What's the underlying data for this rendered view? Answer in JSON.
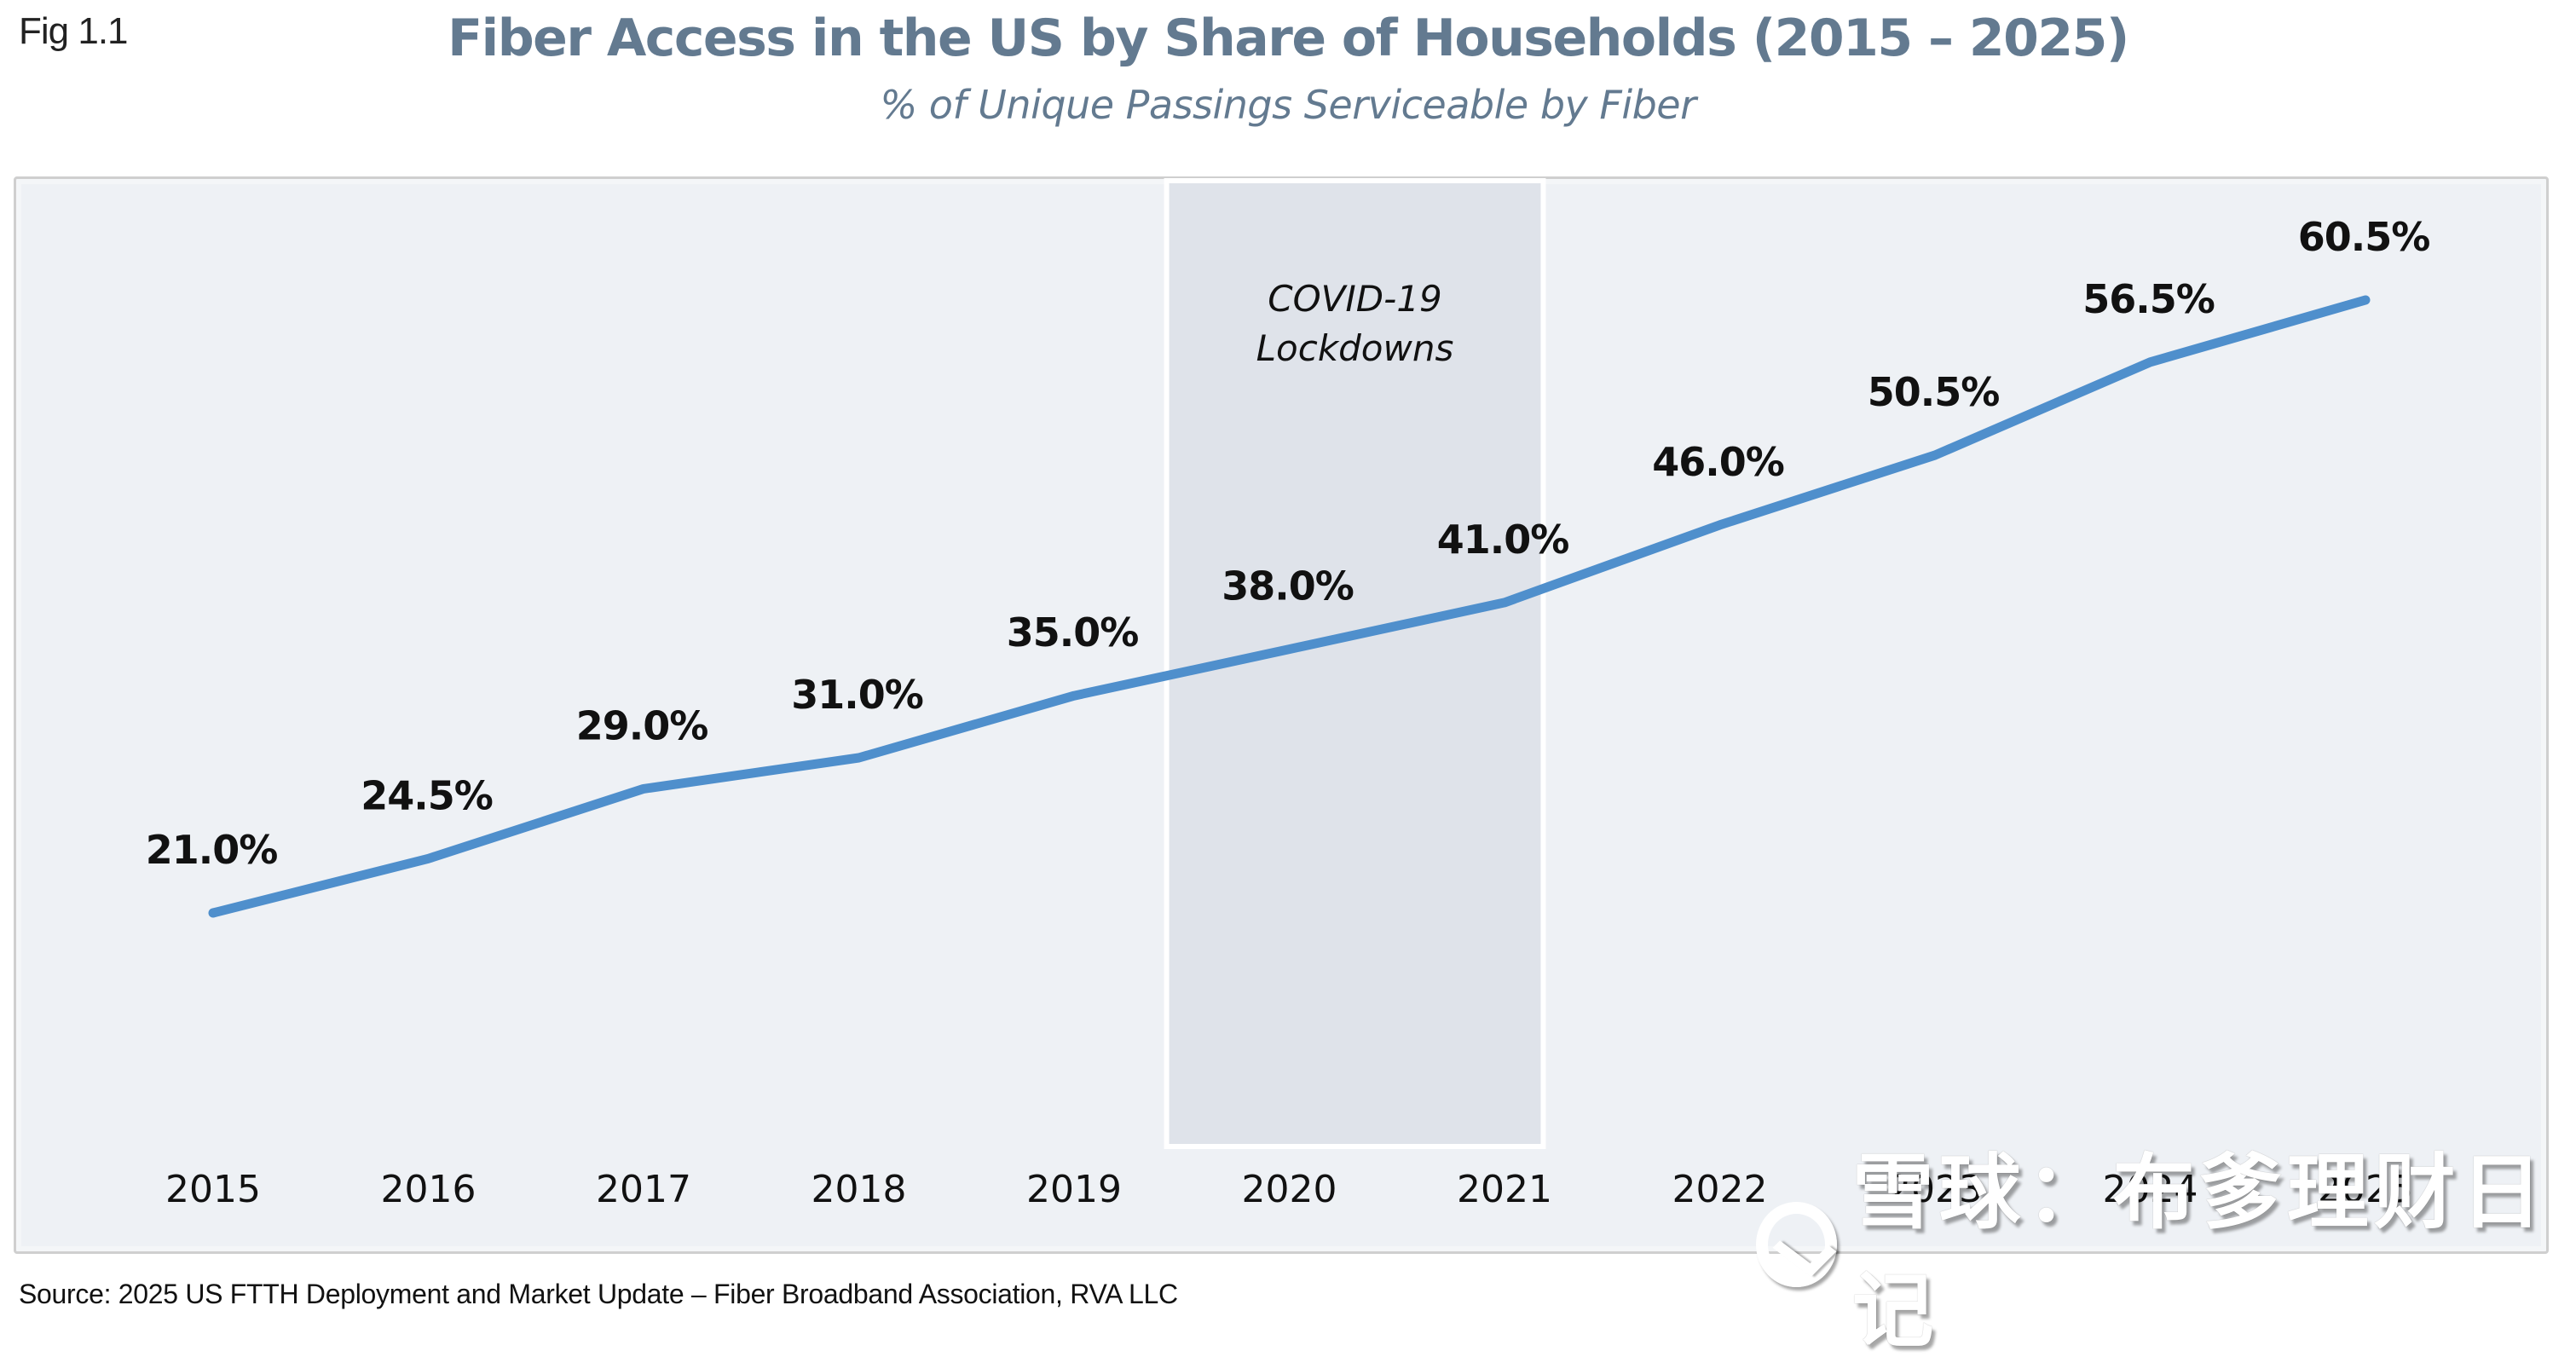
{
  "figure": {
    "label": "Fig 1.1",
    "source": "Source: 2025 US FTTH Deployment and Market Update – Fiber Broadband Association, RVA LLC",
    "watermark": "雪球：布爹理财日记"
  },
  "colors": {
    "title": "#637a90",
    "background": "#eef1f5",
    "band": "#dfe3ea",
    "line": "#4f8fcc",
    "label": "#111111"
  },
  "chart_data": {
    "type": "line",
    "title": "Fiber Access in the US by Share of Households (2015 – 2025)",
    "subtitle": "% of Unique Passings Serviceable by Fiber",
    "xlabel": "",
    "ylabel": "",
    "grid": false,
    "legend": "none",
    "ylim": [
      21,
      60.5
    ],
    "categories": [
      "2015",
      "2016",
      "2017",
      "2018",
      "2019",
      "2020",
      "2021",
      "2022",
      "2023",
      "2024",
      "2025"
    ],
    "series": [
      {
        "name": "% of Unique Passings Serviceable by Fiber",
        "values": [
          21.0,
          24.5,
          29.0,
          31.0,
          35.0,
          38.0,
          41.0,
          46.0,
          50.5,
          56.5,
          60.5
        ],
        "labels": [
          "21.0%",
          "24.5%",
          "29.0%",
          "31.0%",
          "35.0%",
          "38.0%",
          "41.0%",
          "46.0%",
          "50.5%",
          "56.5%",
          "60.5%"
        ]
      }
    ],
    "annotations": [
      {
        "type": "shaded-band",
        "from": "2020",
        "to": "2021",
        "text_lines": [
          "COVID-19",
          "Lockdowns"
        ]
      }
    ]
  }
}
